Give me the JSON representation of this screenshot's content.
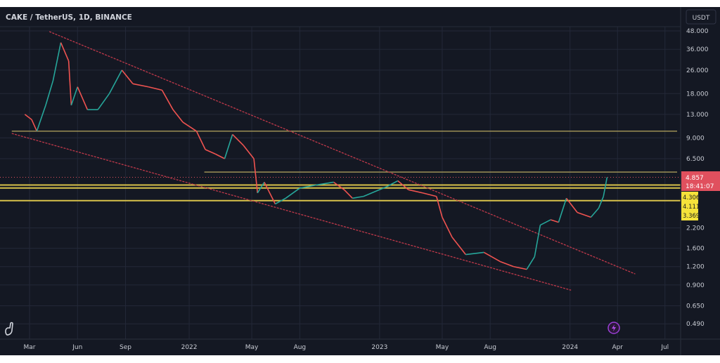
{
  "header": {
    "title": "CAKE / TetherUS, 1D, BINANCE",
    "currency_button": "USDT"
  },
  "colors": {
    "background": "#141823",
    "grid": "#232838",
    "up": "#26a69a",
    "down": "#ef5350",
    "trendline": "#c0394a",
    "support": "#d8c24a",
    "level": "#a89a5a",
    "price_label": "#e0505e",
    "level_label": "#f5e23a"
  },
  "icons": {
    "logo": "dino-logo-icon",
    "flash": "lightning-icon"
  },
  "chart_data": {
    "type": "candlestick",
    "title": "CAKE / TetherUS, 1D, BINANCE",
    "y_scale": "log",
    "ylim": [
      0.45,
      52
    ],
    "grid": true,
    "y_ticks": [
      "48.000",
      "36.000",
      "26.000",
      "18.000",
      "13.000",
      "9.000",
      "6.500",
      "2.200",
      "1.600",
      "1.200",
      "0.900",
      "0.650",
      "0.490"
    ],
    "y_tick_values": [
      48,
      36,
      26,
      18,
      13,
      9,
      6.5,
      2.2,
      1.6,
      1.2,
      0.9,
      0.65,
      0.49
    ],
    "x_ticks": [
      {
        "label": "Mar",
        "date": "2021-03-01"
      },
      {
        "label": "Jun",
        "date": "2021-06-01"
      },
      {
        "label": "Sep",
        "date": "2021-09-01"
      },
      {
        "label": "2022",
        "date": "2022-01-01"
      },
      {
        "label": "May",
        "date": "2022-05-01"
      },
      {
        "label": "Aug",
        "date": "2022-08-01"
      },
      {
        "label": "2023",
        "date": "2023-01-01"
      },
      {
        "label": "May",
        "date": "2023-05-01"
      },
      {
        "label": "Aug",
        "date": "2023-08-01"
      },
      {
        "label": "2024",
        "date": "2024-01-01"
      },
      {
        "label": "Apr",
        "date": "2024-04-01"
      },
      {
        "label": "Jul",
        "date": "2024-07-01"
      }
    ],
    "price_path": [
      [
        "2021-02-20",
        13
      ],
      [
        "2021-03-05",
        12
      ],
      [
        "2021-03-15",
        10
      ],
      [
        "2021-04-01",
        15
      ],
      [
        "2021-04-15",
        22
      ],
      [
        "2021-04-30",
        40
      ],
      [
        "2021-05-15",
        30
      ],
      [
        "2021-05-20",
        15
      ],
      [
        "2021-06-01",
        20
      ],
      [
        "2021-06-20",
        14
      ],
      [
        "2021-07-10",
        14
      ],
      [
        "2021-08-01",
        18
      ],
      [
        "2021-08-25",
        26
      ],
      [
        "2021-09-15",
        21
      ],
      [
        "2021-10-15",
        20
      ],
      [
        "2021-11-10",
        19
      ],
      [
        "2021-12-01",
        14
      ],
      [
        "2021-12-20",
        11.5
      ],
      [
        "2022-01-15",
        10
      ],
      [
        "2022-02-01",
        7.5
      ],
      [
        "2022-02-20",
        7
      ],
      [
        "2022-03-10",
        6.5
      ],
      [
        "2022-03-25",
        9.5
      ],
      [
        "2022-04-15",
        8
      ],
      [
        "2022-05-05",
        6.5
      ],
      [
        "2022-05-12",
        3.8
      ],
      [
        "2022-05-25",
        4.5
      ],
      [
        "2022-06-15",
        3.2
      ],
      [
        "2022-07-05",
        3.5
      ],
      [
        "2022-08-01",
        4.1
      ],
      [
        "2022-09-01",
        4.3
      ],
      [
        "2022-10-05",
        4.5
      ],
      [
        "2022-10-25",
        4.0
      ],
      [
        "2022-11-10",
        3.5
      ],
      [
        "2022-12-01",
        3.6
      ],
      [
        "2023-01-15",
        4.2
      ],
      [
        "2023-02-05",
        4.6
      ],
      [
        "2023-02-25",
        4.0
      ],
      [
        "2023-03-25",
        3.8
      ],
      [
        "2023-04-20",
        3.6
      ],
      [
        "2023-05-01",
        2.6
      ],
      [
        "2023-05-20",
        1.9
      ],
      [
        "2023-06-15",
        1.45
      ],
      [
        "2023-07-20",
        1.5
      ],
      [
        "2023-08-20",
        1.3
      ],
      [
        "2023-09-15",
        1.2
      ],
      [
        "2023-10-10",
        1.15
      ],
      [
        "2023-10-25",
        1.4
      ],
      [
        "2023-11-05",
        2.3
      ],
      [
        "2023-11-25",
        2.5
      ],
      [
        "2023-12-10",
        2.4
      ],
      [
        "2023-12-25",
        3.5
      ],
      [
        "2024-01-15",
        2.8
      ],
      [
        "2024-02-10",
        2.6
      ],
      [
        "2024-02-25",
        3.0
      ],
      [
        "2024-03-05",
        3.6
      ],
      [
        "2024-03-12",
        4.857
      ]
    ],
    "trendlines": [
      {
        "from": [
          "2021-04-08",
          47.5
        ],
        "to": [
          "2024-05-05",
          1.07
        ]
      },
      {
        "from": [
          "2021-01-26",
          9.65
        ],
        "to": [
          "2024-01-03",
          0.83
        ]
      }
    ],
    "horizontal_levels": [
      {
        "price": 10,
        "from": "2021-01-26",
        "style": "level"
      },
      {
        "price": 5.27,
        "from": "2022-01-30",
        "style": "level"
      },
      {
        "price": 4.306,
        "from": "2020-12-01",
        "style": "support"
      },
      {
        "price": 4.111,
        "from": "2020-12-01",
        "style": "support"
      },
      {
        "price": 3.369,
        "from": "2020-12-01",
        "style": "support"
      }
    ],
    "current_price": {
      "value": "4.857",
      "countdown": "18:41:07"
    },
    "level_labels": [
      "4.306",
      "4.111",
      "3.369"
    ]
  }
}
